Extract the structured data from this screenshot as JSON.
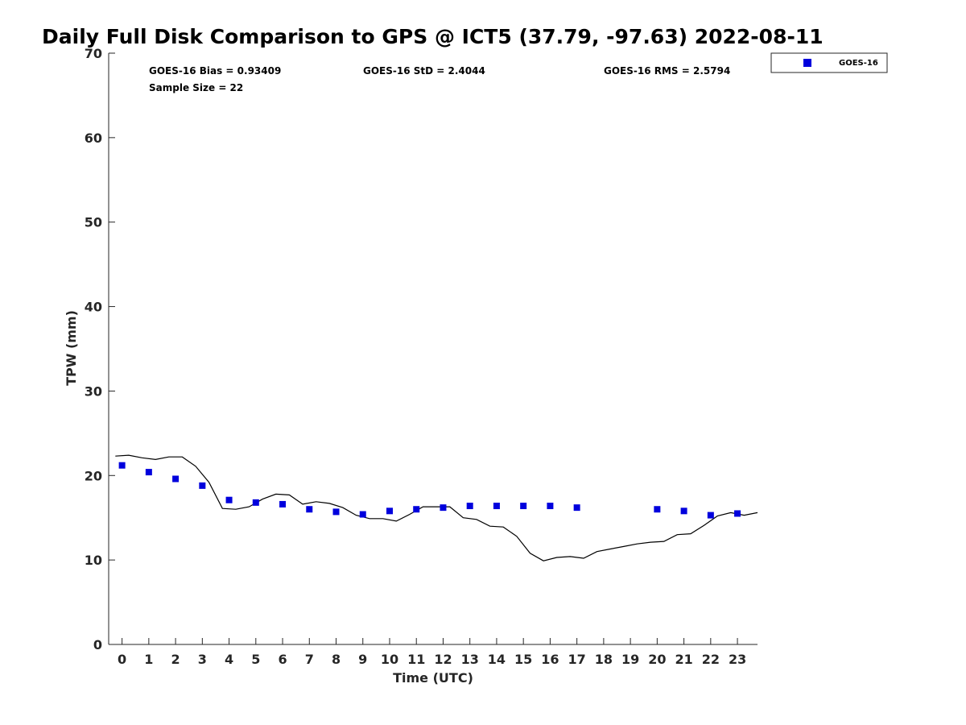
{
  "chart_data": {
    "type": "scatter",
    "title": "Daily Full Disk Comparison to GPS @ ICT5 (37.79, -97.63) 2022-08-11",
    "xlabel": "Time (UTC)",
    "ylabel": "TPW (mm)",
    "xlim": [
      -0.5,
      23.75
    ],
    "ylim": [
      0,
      70
    ],
    "x_ticks": [
      "0",
      "1",
      "2",
      "3",
      "4",
      "5",
      "6",
      "7",
      "8",
      "9",
      "10",
      "11",
      "12",
      "13",
      "14",
      "15",
      "16",
      "17",
      "18",
      "19",
      "20",
      "21",
      "22",
      "23"
    ],
    "y_ticks": [
      "0",
      "10",
      "20",
      "30",
      "40",
      "50",
      "60",
      "70"
    ],
    "grid": false,
    "legend_position": "top-right",
    "stats": {
      "bias": "GOES-16 Bias = 0.93409",
      "std": "GOES-16 StD = 2.4044",
      "rms": "GOES-16 RMS = 2.5794",
      "sample_size": "Sample Size = 22"
    },
    "series": [
      {
        "name": "GOES-16",
        "marker": "square",
        "color": "#0000dd",
        "x": [
          0,
          1,
          2,
          3,
          4,
          5,
          6,
          7,
          8,
          9,
          10,
          11,
          12,
          13,
          14,
          15,
          16,
          17,
          20,
          21,
          22,
          23
        ],
        "y": [
          21.2,
          20.4,
          19.6,
          18.8,
          17.1,
          16.8,
          16.6,
          16.0,
          15.7,
          15.4,
          15.8,
          16.0,
          16.2,
          16.4,
          16.4,
          16.4,
          16.4,
          16.2,
          16.0,
          15.8,
          15.3,
          15.5
        ]
      },
      {
        "line_color": "#000000",
        "x": [
          -0.25,
          0.25,
          0.75,
          1.25,
          1.75,
          2.25,
          2.75,
          3.25,
          3.75,
          4.25,
          4.75,
          5.25,
          5.75,
          6.25,
          6.75,
          7.25,
          7.75,
          8.25,
          8.75,
          9.25,
          9.75,
          10.25,
          10.75,
          11.25,
          11.75,
          12.25,
          12.75,
          13.25,
          13.75,
          14.25,
          14.75,
          15.25,
          15.75,
          16.25,
          16.75,
          17.25,
          17.75,
          18.25,
          18.75,
          19.25,
          19.75,
          20.25,
          20.75,
          21.25,
          21.75,
          22.25,
          22.75,
          23.25,
          23.75
        ],
        "y": [
          22.3,
          22.4,
          22.1,
          21.9,
          22.2,
          22.2,
          21.1,
          19.2,
          16.1,
          16.0,
          16.3,
          17.2,
          17.8,
          17.7,
          16.6,
          16.9,
          16.7,
          16.2,
          15.3,
          14.9,
          14.9,
          14.6,
          15.4,
          16.3,
          16.3,
          16.3,
          15.0,
          14.8,
          14.0,
          13.9,
          12.8,
          10.8,
          9.9,
          10.3,
          10.4,
          10.2,
          11.0,
          11.3,
          11.6,
          11.9,
          12.1,
          12.2,
          13.0,
          13.1,
          14.1,
          15.2,
          15.6,
          15.3,
          15.6
        ]
      }
    ]
  }
}
